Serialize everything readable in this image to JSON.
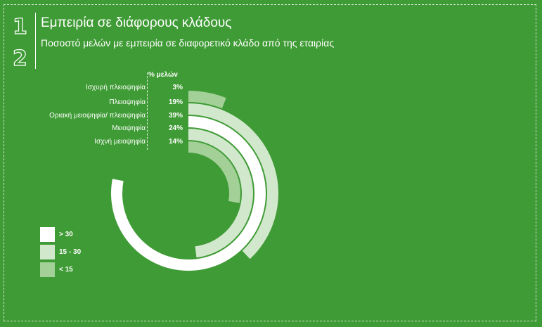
{
  "header": {
    "num1": "1",
    "num2": "2",
    "title": "Εμπειρία σε διάφορους κλάδους",
    "subtitle": "Ποσοστό μελών με εμπειρία σε διαφορετικό κλάδο από της εταιρίας"
  },
  "chart_data": {
    "type": "radial-bar",
    "column_header": "% μελών",
    "categories": [
      "Ισχυρή πλειοψηφία",
      "Πλειοψηφία",
      "Οριακή μειοψηφία/ πλειοψηφία",
      "Μειοψηφία",
      "Ισχνή μειοψηφία"
    ],
    "values": [
      3,
      19,
      39,
      24,
      14
    ],
    "value_labels": [
      "3%",
      "19%",
      "39%",
      "24%",
      "14%"
    ],
    "scale_max": 50,
    "legend": [
      {
        "label": "> 30",
        "color": "#ffffff"
      },
      {
        "label": "15 - 30",
        "color": "#d2e8cd"
      },
      {
        "label": "< 15",
        "color": "#a2d097"
      }
    ]
  }
}
